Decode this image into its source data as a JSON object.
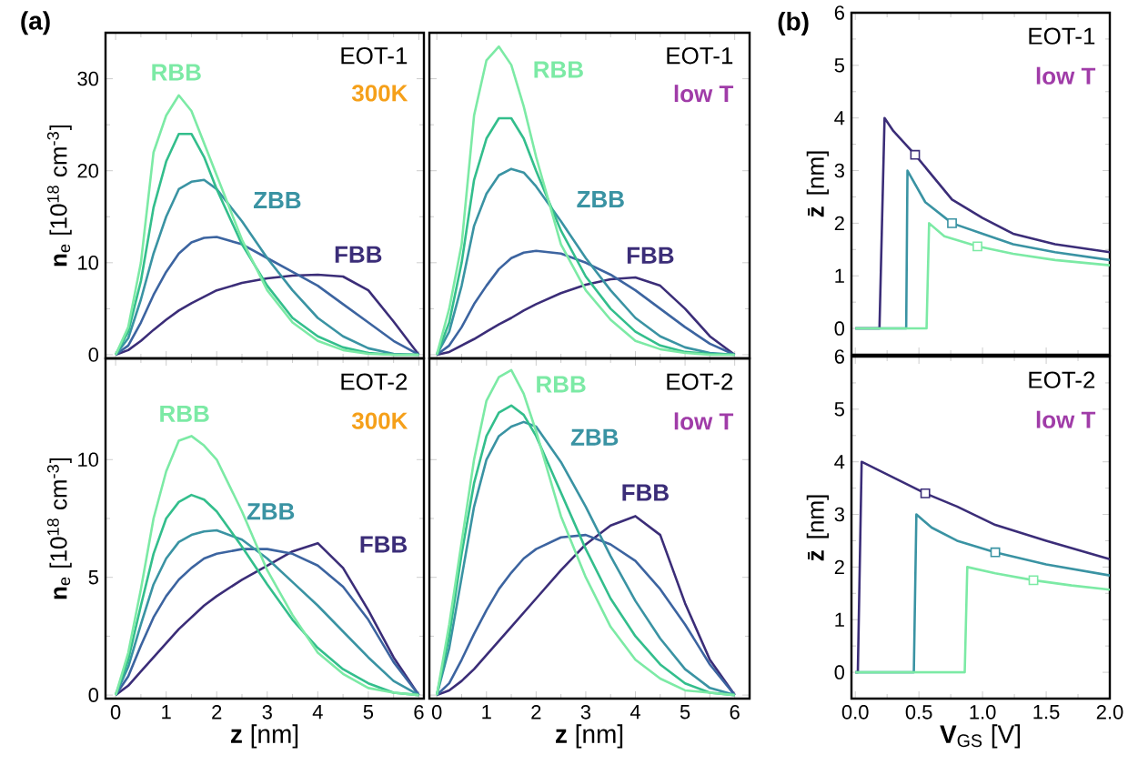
{
  "chart_data": [
    {
      "type": "line",
      "title": "EOT-1",
      "subtitle": "300K",
      "ylabel": "**n**$_{e}$ [10$^{18}$ cm$^{-3}$]",
      "annotations": [
        "(a)"
      ],
      "tick_labels": "y",
      "xlim": [
        -0.2,
        6.1
      ],
      "ylim": [
        -0.4,
        35
      ],
      "xticks": [
        0,
        1,
        2,
        3,
        4,
        5,
        6
      ],
      "yticks": [
        0,
        10,
        20,
        30
      ],
      "x": [
        0,
        0.25,
        0.5,
        0.75,
        1,
        1.25,
        1.5,
        1.75,
        2,
        2.5,
        3,
        3.5,
        4,
        4.5,
        5,
        5.5,
        6
      ],
      "series": [
        {
          "name": "FBB",
          "color": "#3b2d78",
          "values": [
            0,
            0.5,
            1.5,
            2.7,
            3.8,
            4.8,
            5.6,
            6.3,
            7,
            7.8,
            8.3,
            8.6,
            8.7,
            8.5,
            7,
            3.6,
            0
          ]
        },
        {
          "color": "#3c64a0",
          "values": [
            0,
            1,
            3.5,
            6.5,
            9,
            11,
            12.2,
            12.7,
            12.8,
            12,
            10.5,
            9,
            7.5,
            5.5,
            3.5,
            1.5,
            0
          ]
        },
        {
          "name": "ZBB",
          "color": "#3a93a3",
          "values": [
            0,
            1.8,
            6,
            11,
            15,
            18,
            18.8,
            19,
            18,
            14.5,
            10.5,
            7,
            4,
            2,
            0.7,
            0.1,
            0
          ]
        },
        {
          "color": "#33be8c",
          "values": [
            0,
            2.5,
            8,
            16,
            21,
            24,
            24,
            21.5,
            18,
            12,
            7.5,
            4,
            2,
            0.8,
            0.2,
            0,
            0
          ]
        },
        {
          "name": "RBB",
          "color": "#7ceaa5",
          "values": [
            0,
            3,
            10,
            22,
            26,
            28.2,
            26.5,
            23,
            19.5,
            12.5,
            7,
            3.5,
            1.5,
            0.5,
            0.1,
            0,
            0
          ]
        }
      ]
    },
    {
      "type": "line",
      "title": "EOT-1",
      "subtitle": "low T",
      "tick_labels": false,
      "xlim": [
        -0.15,
        6.3
      ],
      "ylim": [
        -0.4,
        35
      ],
      "xticks": [
        0,
        1,
        2,
        3,
        4,
        5,
        6
      ],
      "yticks": [
        0,
        10,
        20,
        30
      ],
      "x": [
        0,
        0.25,
        0.5,
        0.75,
        1,
        1.25,
        1.5,
        1.75,
        2,
        2.5,
        3,
        3.5,
        4,
        4.5,
        5,
        5.5,
        6
      ],
      "series": [
        {
          "name": "FBB",
          "color": "#3b2d78",
          "values": [
            0,
            0.3,
            1,
            1.7,
            2.5,
            3.3,
            4,
            4.8,
            5.5,
            6.7,
            7.6,
            8.2,
            8.4,
            7.5,
            5,
            2,
            0
          ]
        },
        {
          "color": "#3c64a0",
          "values": [
            0,
            1,
            3,
            5.5,
            7.5,
            9.3,
            10.5,
            11.1,
            11.3,
            11,
            10,
            8.7,
            7,
            5,
            3,
            1.2,
            0
          ]
        },
        {
          "name": "ZBB",
          "color": "#3a93a3",
          "values": [
            0,
            2.5,
            7.5,
            14,
            17.5,
            19.5,
            20.2,
            19.8,
            18.3,
            14.5,
            10.5,
            7,
            4,
            2,
            0.8,
            0.2,
            0
          ]
        },
        {
          "color": "#33be8c",
          "values": [
            0,
            3.5,
            10,
            19,
            23.5,
            25.7,
            25.7,
            23.5,
            20,
            13.5,
            8.5,
            5,
            2.5,
            1,
            0.3,
            0.1,
            0
          ]
        },
        {
          "name": "RBB",
          "color": "#7ceaa5",
          "values": [
            0,
            5,
            12,
            26,
            32,
            33.5,
            31.5,
            27,
            21.5,
            12,
            7,
            3.8,
            1.5,
            0.6,
            0.2,
            0,
            0
          ]
        }
      ]
    },
    {
      "type": "line",
      "title": "EOT-2",
      "subtitle": "300K",
      "ylabel": "**n**$_{e}$ [10$^{18}$ cm$^{-3}$]",
      "xlabel": "**z** [nm]",
      "xlim": [
        -0.2,
        6.1
      ],
      "ylim": [
        -0.15,
        14.3
      ],
      "xticks": [
        0,
        1,
        2,
        3,
        4,
        5,
        6
      ],
      "yticks": [
        0,
        5,
        10
      ],
      "x": [
        0,
        0.25,
        0.5,
        0.75,
        1,
        1.25,
        1.5,
        1.75,
        2,
        2.5,
        3,
        3.5,
        4,
        4.5,
        5,
        5.5,
        6
      ],
      "series": [
        {
          "name": "FBB",
          "color": "#3b2d78",
          "values": [
            0,
            0.4,
            1,
            1.6,
            2.2,
            2.8,
            3.3,
            3.8,
            4.2,
            4.9,
            5.5,
            6.1,
            6.45,
            5.4,
            3.6,
            1.6,
            0
          ]
        },
        {
          "color": "#3c64a0",
          "values": [
            0,
            0.8,
            2.1,
            3.3,
            4.2,
            4.9,
            5.4,
            5.8,
            6,
            6.2,
            6.2,
            6,
            5.5,
            4.6,
            3.2,
            1.4,
            0
          ]
        },
        {
          "name": "ZBB",
          "color": "#3a93a3",
          "values": [
            0,
            1.2,
            3,
            4.7,
            5.8,
            6.5,
            6.8,
            6.95,
            7,
            6.6,
            5.8,
            4.8,
            3.8,
            2.7,
            1.6,
            0.6,
            0
          ]
        },
        {
          "color": "#33be8c",
          "values": [
            0,
            1.5,
            3.8,
            6,
            7.5,
            8.2,
            8.5,
            8.3,
            7.8,
            6.3,
            4.7,
            3.2,
            2,
            1.1,
            0.5,
            0.1,
            0
          ]
        },
        {
          "name": "RBB",
          "color": "#7ceaa5",
          "values": [
            0,
            1.8,
            4.5,
            7.5,
            9.5,
            10.8,
            11,
            10.6,
            10,
            7.8,
            5.3,
            3.4,
            1.8,
            0.9,
            0.3,
            0.1,
            0
          ]
        }
      ]
    },
    {
      "type": "line",
      "title": "EOT-2",
      "subtitle": "low T",
      "xlabel": "**z** [nm]",
      "tick_labels": "x",
      "xlim": [
        -0.15,
        6.3
      ],
      "ylim": [
        -0.15,
        14.3
      ],
      "xticks": [
        0,
        1,
        2,
        3,
        4,
        5,
        6
      ],
      "yticks": [
        0,
        5,
        10
      ],
      "x": [
        0,
        0.25,
        0.5,
        0.75,
        1,
        1.25,
        1.5,
        1.75,
        2,
        2.5,
        3,
        3.5,
        4,
        4.5,
        5,
        5.5,
        6
      ],
      "series": [
        {
          "name": "FBB",
          "color": "#3b2d78",
          "values": [
            0,
            0.2,
            0.6,
            1.1,
            1.7,
            2.3,
            2.9,
            3.5,
            4.1,
            5.3,
            6.4,
            7.2,
            7.6,
            6.8,
            3.9,
            1.5,
            0
          ]
        },
        {
          "color": "#3c64a0",
          "values": [
            0,
            0.5,
            1.5,
            2.6,
            3.6,
            4.5,
            5.2,
            5.8,
            6.2,
            6.7,
            6.8,
            6.4,
            5.7,
            4.5,
            3,
            1.3,
            0
          ]
        },
        {
          "name": "ZBB",
          "color": "#3a93a3",
          "values": [
            0,
            2,
            5,
            8,
            10,
            11,
            11.4,
            11.6,
            11.4,
            9.9,
            8,
            5.9,
            4,
            2.4,
            1.1,
            0.3,
            0
          ]
        },
        {
          "color": "#33be8c",
          "values": [
            0,
            2.5,
            6,
            9,
            11,
            12,
            12.3,
            11.9,
            11,
            8.6,
            6.2,
            4.1,
            2.5,
            1.3,
            0.5,
            0.1,
            0
          ]
        },
        {
          "name": "RBB",
          "color": "#7ceaa5",
          "values": [
            0,
            3,
            6.5,
            10,
            12.5,
            13.5,
            13.8,
            12.8,
            11.2,
            7.6,
            5,
            2.9,
            1.5,
            0.7,
            0.2,
            0.1,
            0
          ]
        }
      ]
    },
    {
      "type": "line",
      "title": "EOT-1",
      "subtitle": "low T",
      "ylabel": "**z̄** [nm]",
      "annotations": [
        "(b)"
      ],
      "tick_labels": "y",
      "xlim": [
        -0.03,
        2.0
      ],
      "ylim": [
        -0.5,
        6
      ],
      "xticks": [
        0,
        0.5,
        1,
        1.5,
        2
      ],
      "yticks": [
        0,
        1,
        2,
        3,
        4,
        5,
        6
      ],
      "series": [
        {
          "color": "#3b2d78",
          "x": [
            0,
            0.19,
            0.23,
            0.3,
            0.47,
            0.76,
            1.0,
            1.24,
            1.57,
            2.0
          ],
          "values": [
            0,
            0,
            4.0,
            3.75,
            3.3,
            2.45,
            2.1,
            1.8,
            1.6,
            1.45
          ]
        },
        {
          "color": "#3a93a3",
          "x": [
            0,
            0.4,
            0.41,
            0.55,
            0.76,
            1.0,
            1.24,
            1.57,
            2.0
          ],
          "values": [
            0,
            0,
            3.0,
            2.4,
            2.0,
            1.8,
            1.6,
            1.45,
            1.3
          ]
        },
        {
          "color": "#7ceaa5",
          "x": [
            0,
            0.56,
            0.58,
            0.7,
            0.96,
            1.24,
            1.57,
            2.0
          ],
          "values": [
            0,
            0,
            2.0,
            1.75,
            1.56,
            1.42,
            1.3,
            1.2
          ]
        },
        {
          "type": "scatter",
          "marker": "square",
          "color": "#3b2d78",
          "x": [
            0.47
          ],
          "values": [
            3.3
          ]
        },
        {
          "type": "scatter",
          "marker": "square",
          "color": "#3a93a3",
          "x": [
            0.76
          ],
          "values": [
            2.0
          ]
        },
        {
          "type": "scatter",
          "marker": "square",
          "color": "#7ceaa5",
          "x": [
            0.96
          ],
          "values": [
            1.56
          ]
        }
      ]
    },
    {
      "type": "line",
      "title": "EOT-2",
      "subtitle": "low T",
      "ylabel": "**z̄** [nm]",
      "xlabel": "**V**$_{GS}$ [V]",
      "xlim": [
        -0.03,
        2.0
      ],
      "ylim": [
        -0.5,
        6
      ],
      "xticks": [
        {
          "value": 0,
          "label": "0.0"
        },
        {
          "value": 0.5,
          "label": "0.5"
        },
        {
          "value": 1,
          "label": "1.0"
        },
        {
          "value": 1.5,
          "label": "1.5"
        },
        {
          "value": 2,
          "label": "2.0"
        }
      ],
      "yticks": [
        0,
        1,
        2,
        3,
        4,
        5,
        6
      ],
      "series": [
        {
          "color": "#3b2d78",
          "x": [
            0,
            0.02,
            0.05,
            0.3,
            0.55,
            0.8,
            1.1,
            1.5,
            2.0
          ],
          "values": [
            0,
            0,
            4.0,
            3.7,
            3.4,
            3.15,
            2.8,
            2.5,
            2.15
          ]
        },
        {
          "color": "#3a93a3",
          "x": [
            0,
            0.46,
            0.48,
            0.6,
            0.8,
            1.1,
            1.5,
            2.0
          ],
          "values": [
            0,
            0,
            3.0,
            2.75,
            2.5,
            2.28,
            2.05,
            1.84
          ]
        },
        {
          "color": "#7ceaa5",
          "x": [
            0,
            0.86,
            0.88,
            1.1,
            1.4,
            1.7,
            2.0
          ],
          "values": [
            0,
            0,
            2.0,
            1.88,
            1.75,
            1.65,
            1.57
          ]
        },
        {
          "type": "scatter",
          "marker": "square",
          "color": "#3b2d78",
          "x": [
            0.55
          ],
          "values": [
            3.4
          ]
        },
        {
          "type": "scatter",
          "marker": "square",
          "color": "#3a93a3",
          "x": [
            1.1
          ],
          "values": [
            2.28
          ]
        },
        {
          "type": "scatter",
          "marker": "square",
          "color": "#7ceaa5",
          "x": [
            1.4
          ],
          "values": [
            1.75
          ]
        }
      ]
    }
  ]
}
